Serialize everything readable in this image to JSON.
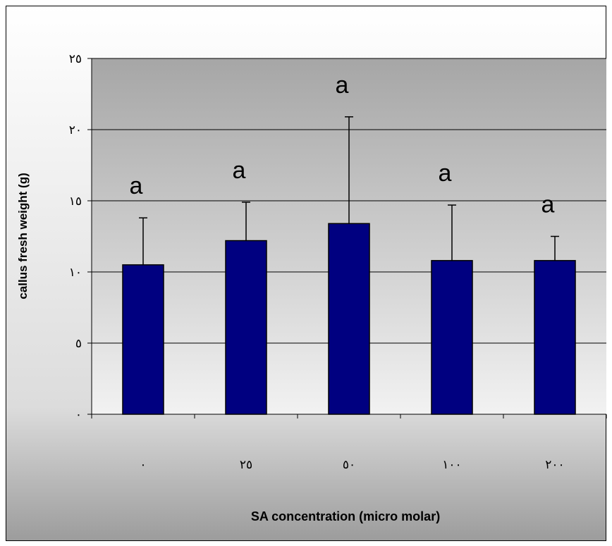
{
  "chart_data": {
    "type": "bar",
    "categories": [
      "٠",
      "٢٥",
      "٥٠",
      "١٠٠",
      "٢٠٠"
    ],
    "values": [
      10.5,
      12.2,
      13.4,
      10.8,
      10.8
    ],
    "error_upper": [
      13.8,
      14.9,
      20.9,
      14.7,
      12.5
    ],
    "bar_labels": [
      "a",
      "a",
      "a",
      "a",
      "a"
    ],
    "xlabel": "SA concentration (micro molar)",
    "ylabel": "callus fresh weight (g)",
    "ylim": [
      0,
      25
    ],
    "yticks": [
      0,
      5,
      10,
      15,
      20,
      25
    ],
    "ytick_labels": [
      "٠",
      "٥",
      "١٠",
      "١٥",
      "٢٠",
      "٢٥"
    ],
    "grid": true,
    "legend": "none",
    "colors": {
      "bar_fill": "#000080",
      "bar_stroke": "#000000",
      "plot_bg_top": "#a6a6a6",
      "plot_bg_bottom": "#f2f2f2",
      "outer_bg_top": "#e8e8e8",
      "outer_bg_bottom": "#9c9c9c"
    }
  }
}
